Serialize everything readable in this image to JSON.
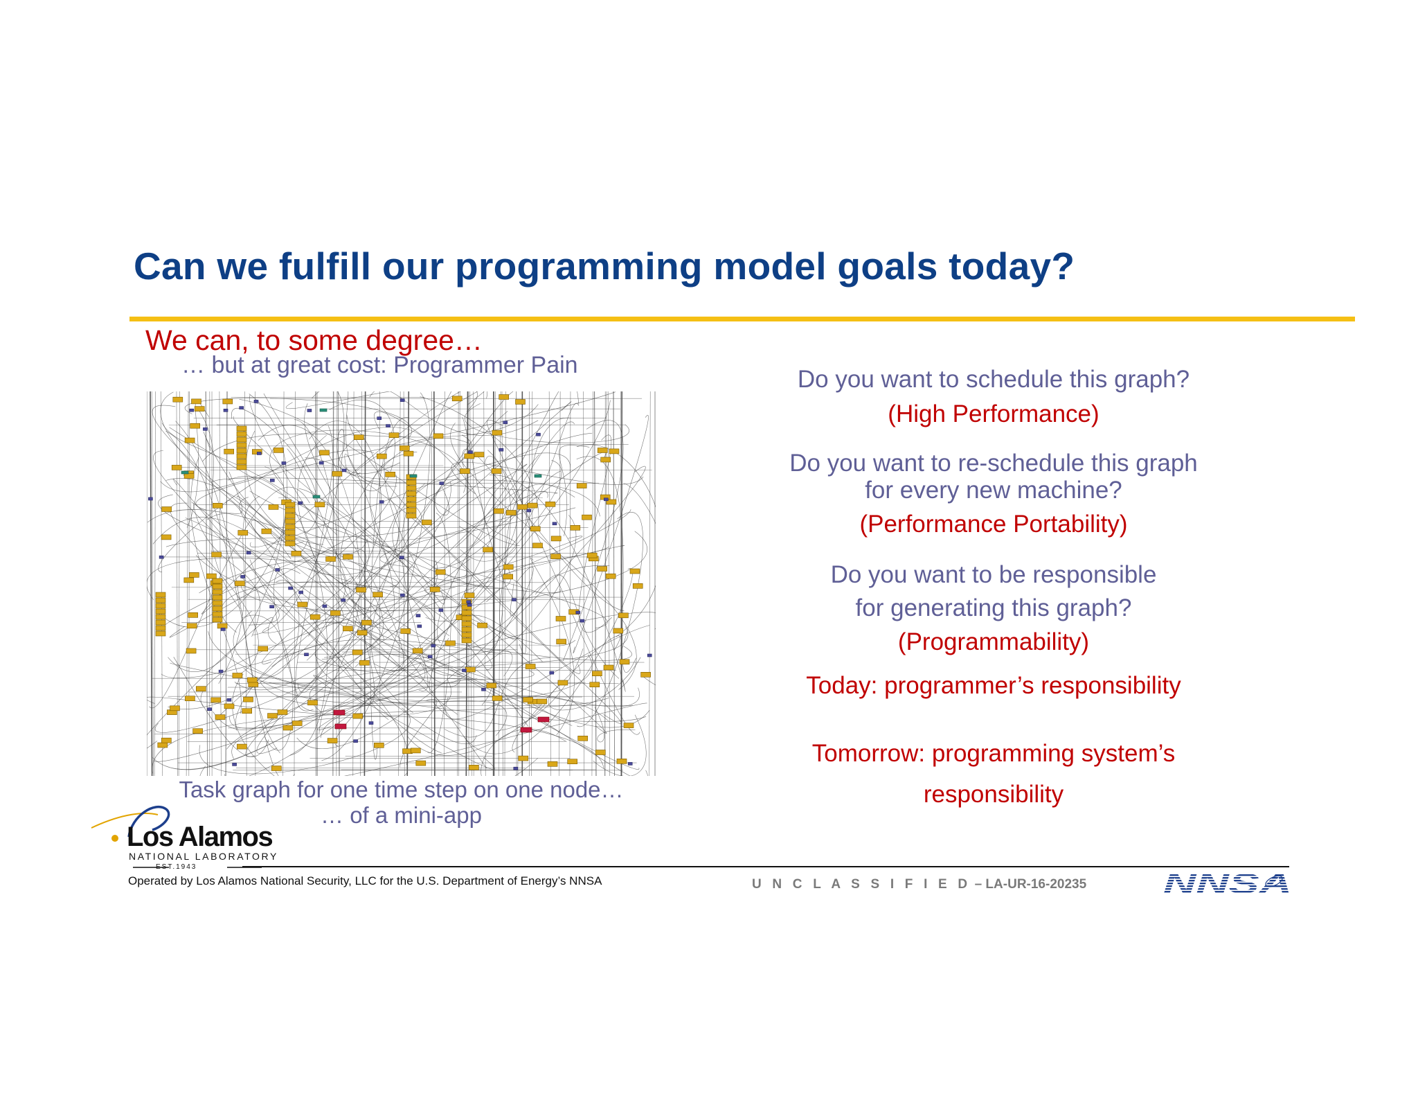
{
  "colors": {
    "title": "#0e3f85",
    "rule": "#f5bf14",
    "red": "#c00000",
    "slate": "#5f5f96",
    "footer_gray": "#7a7a7a"
  },
  "slide": {
    "title": "Can we fulfill our programming model goals today?"
  },
  "left": {
    "heading": "We can, to some degree…",
    "subheading": "… but at great cost: Programmer Pain",
    "caption_line1": "Task graph for one time step on one node…",
    "caption_line2": "… of a mini-app"
  },
  "right": {
    "q1": "Do you want to schedule this graph?",
    "a1": "(High Performance)",
    "q2_line1": "Do you want to re-schedule this graph",
    "q2_line2": "for every new machine?",
    "a2": "(Performance Portability)",
    "q3_line1": "Do you want to be responsible",
    "q3_line2": "for generating this graph?",
    "a3": "(Programmability)",
    "today": "Today: programmer’s responsibility",
    "tomorrow_line1": "Tomorrow: programming system’s",
    "tomorrow_line2": "responsibility"
  },
  "logo": {
    "name": "Los Alamos",
    "sub": "NATIONAL LABORATORY",
    "est": "EST.1943"
  },
  "footer": {
    "operated": "Operated by Los Alamos National Security, LLC for the U.S. Department of Energy’s NNSA",
    "classification": "U N C L A S S I F I E D",
    "report_id": " – LA-UR-16-20235",
    "nnsa_logo": "NNSA"
  }
}
